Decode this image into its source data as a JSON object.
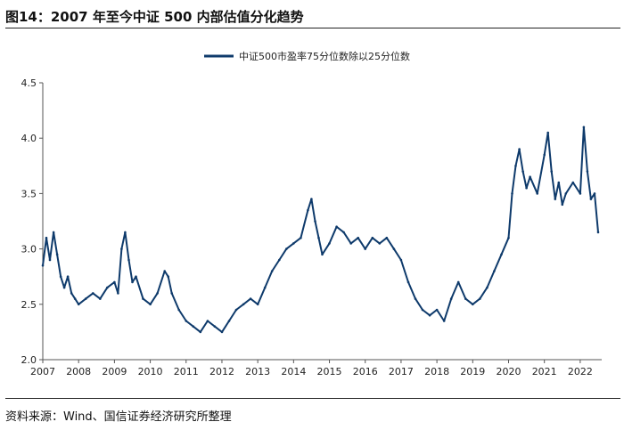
{
  "header": {
    "title": "图14：2007 年至今中证 500 内部估值分化趋势"
  },
  "footer": {
    "source": "资料来源：Wind、国信证券经济研究所整理"
  },
  "colors": {
    "series": "#0e3a6b",
    "axis": "#555555"
  },
  "chart_data": {
    "type": "line",
    "legend_position": "top-center",
    "grid": false,
    "ylim": [
      2.0,
      4.5
    ],
    "yticks": [
      2.0,
      2.5,
      3.0,
      3.5,
      4.0,
      4.5
    ],
    "ytick_labels": [
      "2.0",
      "2.5",
      "3.0",
      "3.5",
      "4.0",
      "4.5"
    ],
    "xlim": [
      2007.0,
      2022.6
    ],
    "xticks": [
      2007,
      2008,
      2009,
      2010,
      2011,
      2012,
      2013,
      2014,
      2015,
      2016,
      2017,
      2018,
      2019,
      2020,
      2021,
      2022
    ],
    "xtick_labels": [
      "2007",
      "2008",
      "2009",
      "2010",
      "2011",
      "2012",
      "2013",
      "2014",
      "2015",
      "2016",
      "2017",
      "2018",
      "2019",
      "2020",
      "2021",
      "2022"
    ],
    "series": [
      {
        "name": "中证500市盈率75分位数除以25分位数",
        "x": [
          2007.0,
          2007.1,
          2007.2,
          2007.3,
          2007.4,
          2007.5,
          2007.6,
          2007.7,
          2007.8,
          2007.9,
          2008.0,
          2008.2,
          2008.4,
          2008.6,
          2008.8,
          2009.0,
          2009.1,
          2009.2,
          2009.3,
          2009.4,
          2009.5,
          2009.6,
          2009.8,
          2010.0,
          2010.2,
          2010.4,
          2010.5,
          2010.6,
          2010.8,
          2011.0,
          2011.2,
          2011.4,
          2011.6,
          2011.8,
          2012.0,
          2012.2,
          2012.4,
          2012.6,
          2012.8,
          2013.0,
          2013.2,
          2013.4,
          2013.6,
          2013.8,
          2014.0,
          2014.2,
          2014.4,
          2014.5,
          2014.6,
          2014.7,
          2014.8,
          2015.0,
          2015.2,
          2015.4,
          2015.6,
          2015.8,
          2016.0,
          2016.2,
          2016.4,
          2016.6,
          2016.8,
          2017.0,
          2017.2,
          2017.4,
          2017.6,
          2017.8,
          2018.0,
          2018.2,
          2018.4,
          2018.6,
          2018.8,
          2019.0,
          2019.2,
          2019.4,
          2019.6,
          2019.8,
          2020.0,
          2020.1,
          2020.2,
          2020.3,
          2020.4,
          2020.5,
          2020.6,
          2020.8,
          2021.0,
          2021.1,
          2021.2,
          2021.3,
          2021.4,
          2021.5,
          2021.6,
          2021.8,
          2022.0,
          2022.1,
          2022.2,
          2022.3,
          2022.4,
          2022.5
        ],
        "values": [
          2.85,
          3.1,
          2.9,
          3.15,
          2.95,
          2.75,
          2.65,
          2.75,
          2.6,
          2.55,
          2.5,
          2.55,
          2.6,
          2.55,
          2.65,
          2.7,
          2.6,
          3.0,
          3.15,
          2.9,
          2.7,
          2.75,
          2.55,
          2.5,
          2.6,
          2.8,
          2.75,
          2.6,
          2.45,
          2.35,
          2.3,
          2.25,
          2.35,
          2.3,
          2.25,
          2.35,
          2.45,
          2.5,
          2.55,
          2.5,
          2.65,
          2.8,
          2.9,
          3.0,
          3.05,
          3.1,
          3.35,
          3.45,
          3.25,
          3.1,
          2.95,
          3.05,
          3.2,
          3.15,
          3.05,
          3.1,
          3.0,
          3.1,
          3.05,
          3.1,
          3.0,
          2.9,
          2.7,
          2.55,
          2.45,
          2.4,
          2.45,
          2.35,
          2.55,
          2.7,
          2.55,
          2.5,
          2.55,
          2.65,
          2.8,
          2.95,
          3.1,
          3.5,
          3.75,
          3.9,
          3.7,
          3.55,
          3.65,
          3.5,
          3.85,
          4.05,
          3.7,
          3.45,
          3.6,
          3.4,
          3.5,
          3.6,
          3.5,
          4.1,
          3.7,
          3.45,
          3.5,
          3.15
        ]
      }
    ]
  }
}
